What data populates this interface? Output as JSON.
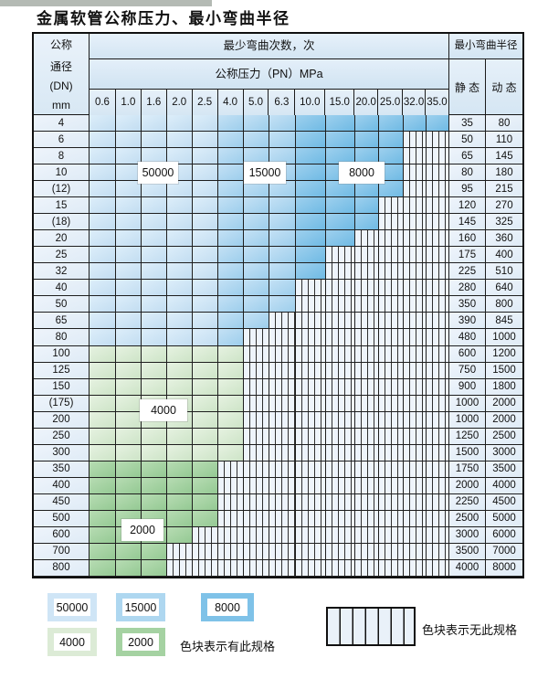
{
  "title": "金属软管公称压力、最小弯曲半径",
  "table": {
    "header": {
      "dn_label_lines": [
        "公称",
        "通径",
        "(DN)",
        "mm"
      ],
      "bend_cycles_label": "最少弯曲次数，次",
      "pressure_label": "公称压力（PN）MPa",
      "pressure_columns": [
        "0.6",
        "1.0",
        "1.6",
        "2.0",
        "2.5",
        "4.0",
        "5.0",
        "6.3",
        "10.0",
        "15.0",
        "20.0",
        "25.0",
        "32.0",
        "35.0"
      ],
      "radius_label": "最小弯曲半径",
      "static_label": "静 态",
      "dynamic_label": "动 态"
    },
    "blue_band_ranges": {
      "50000": [
        "0.6",
        "2.5"
      ],
      "15000": [
        "4.0",
        "6.3"
      ],
      "8000": [
        "10.0",
        "35.0"
      ]
    },
    "rows": [
      {
        "dn": "4",
        "max_pn": "35.0",
        "band": "blue",
        "static": "35",
        "dynamic": "80"
      },
      {
        "dn": "6",
        "max_pn": "25.0",
        "band": "blue",
        "static": "50",
        "dynamic": "110"
      },
      {
        "dn": "8",
        "max_pn": "25.0",
        "band": "blue",
        "static": "65",
        "dynamic": "145"
      },
      {
        "dn": "10",
        "max_pn": "25.0",
        "band": "blue",
        "static": "80",
        "dynamic": "180"
      },
      {
        "dn": "(12)",
        "max_pn": "25.0",
        "band": "blue",
        "static": "95",
        "dynamic": "215"
      },
      {
        "dn": "15",
        "max_pn": "20.0",
        "band": "blue",
        "static": "120",
        "dynamic": "270"
      },
      {
        "dn": "(18)",
        "max_pn": "20.0",
        "band": "blue",
        "static": "145",
        "dynamic": "325"
      },
      {
        "dn": "20",
        "max_pn": "15.0",
        "band": "blue",
        "static": "160",
        "dynamic": "360"
      },
      {
        "dn": "25",
        "max_pn": "10.0",
        "band": "blue",
        "static": "175",
        "dynamic": "400"
      },
      {
        "dn": "32",
        "max_pn": "10.0",
        "band": "blue",
        "static": "225",
        "dynamic": "510"
      },
      {
        "dn": "40",
        "max_pn": "6.3",
        "band": "blue",
        "static": "280",
        "dynamic": "640"
      },
      {
        "dn": "50",
        "max_pn": "6.3",
        "band": "blue",
        "static": "350",
        "dynamic": "800"
      },
      {
        "dn": "65",
        "max_pn": "5.0",
        "band": "blue",
        "static": "390",
        "dynamic": "845"
      },
      {
        "dn": "80",
        "max_pn": "4.0",
        "band": "blue",
        "static": "480",
        "dynamic": "1000"
      },
      {
        "dn": "100",
        "max_pn": "4.0",
        "band": "4000",
        "static": "600",
        "dynamic": "1200"
      },
      {
        "dn": "125",
        "max_pn": "4.0",
        "band": "4000",
        "static": "750",
        "dynamic": "1500"
      },
      {
        "dn": "150",
        "max_pn": "4.0",
        "band": "4000",
        "static": "900",
        "dynamic": "1800"
      },
      {
        "dn": "(175)",
        "max_pn": "4.0",
        "band": "4000",
        "static": "1000",
        "dynamic": "2000"
      },
      {
        "dn": "200",
        "max_pn": "4.0",
        "band": "4000",
        "static": "1000",
        "dynamic": "2000"
      },
      {
        "dn": "250",
        "max_pn": "4.0",
        "band": "4000",
        "static": "1250",
        "dynamic": "2500"
      },
      {
        "dn": "300",
        "max_pn": "4.0",
        "band": "4000",
        "static": "1500",
        "dynamic": "3000"
      },
      {
        "dn": "350",
        "max_pn": "2.5",
        "band": "2000",
        "static": "1750",
        "dynamic": "3500"
      },
      {
        "dn": "400",
        "max_pn": "2.5",
        "band": "2000",
        "static": "2000",
        "dynamic": "4000"
      },
      {
        "dn": "450",
        "max_pn": "2.5",
        "band": "2000",
        "static": "2250",
        "dynamic": "4500"
      },
      {
        "dn": "500",
        "max_pn": "2.5",
        "band": "2000",
        "static": "2500",
        "dynamic": "5000"
      },
      {
        "dn": "600",
        "max_pn": "2.0",
        "band": "2000",
        "static": "3000",
        "dynamic": "6000"
      },
      {
        "dn": "700",
        "max_pn": "1.6",
        "band": "2000",
        "static": "3500",
        "dynamic": "7000"
      },
      {
        "dn": "800",
        "max_pn": "1.6",
        "band": "2000",
        "static": "4000",
        "dynamic": "8000"
      }
    ]
  },
  "overlay_labels": [
    "50000",
    "15000",
    "8000",
    "4000",
    "2000"
  ],
  "legend": {
    "items": [
      {
        "value": "50000"
      },
      {
        "value": "15000"
      },
      {
        "value": "8000"
      },
      {
        "value": "4000"
      },
      {
        "value": "2000"
      }
    ],
    "has_spec_note": "色块表示有此规格",
    "no_spec_note": "色块表示无此规格"
  },
  "colors": {
    "cycles_50000": "#cfe5f6",
    "cycles_15000": "#aed7f0",
    "cycles_8000": "#7fc2e8",
    "cycles_4000": "#dcebd6",
    "cycles_2000": "#a5d2a2",
    "no_spec_bg": "#eef4fb",
    "grid_line": "#1e1e1e"
  }
}
